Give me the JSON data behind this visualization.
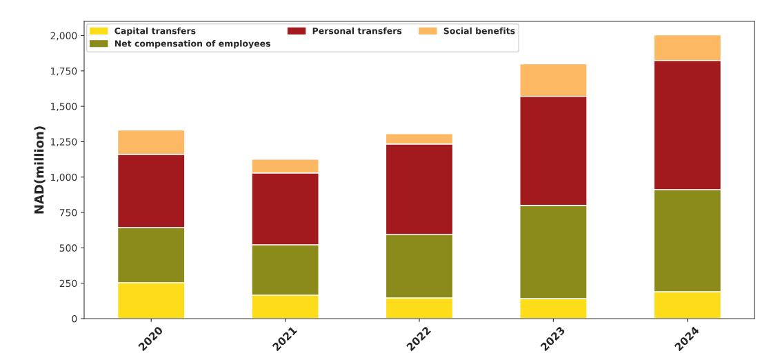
{
  "chart_data": {
    "type": "bar",
    "stacked": true,
    "ylabel": "NAD(million)",
    "categories": [
      "2020",
      "2021",
      "2022",
      "2023",
      "2024"
    ],
    "series": [
      {
        "name": "Capital transfers",
        "color": "#fddc1a",
        "values": [
          254,
          166,
          146,
          141,
          190
        ]
      },
      {
        "name": "Net compensation of employees",
        "color": "#8b8b1b",
        "values": [
          390,
          356,
          449,
          659,
          722
        ]
      },
      {
        "name": "Personal transfers",
        "color": "#a21a1d",
        "values": [
          517,
          507,
          639,
          771,
          912
        ]
      },
      {
        "name": "Social benefits",
        "color": "#fdb863",
        "values": [
          171,
          98,
          73,
          229,
          181
        ]
      }
    ],
    "ylim": [
      0,
      2100
    ],
    "yticks": [
      {
        "value": 0,
        "label": "0"
      },
      {
        "value": 250,
        "label": "250"
      },
      {
        "value": 500,
        "label": "500"
      },
      {
        "value": 750,
        "label": "750"
      },
      {
        "value": 1000,
        "label": "1,000"
      },
      {
        "value": 1250,
        "label": "1,250"
      },
      {
        "value": 1500,
        "label": "1,500"
      },
      {
        "value": 1750,
        "label": "1,750"
      },
      {
        "value": 2000,
        "label": "2,000"
      }
    ],
    "grid": false,
    "legend": "top left"
  }
}
